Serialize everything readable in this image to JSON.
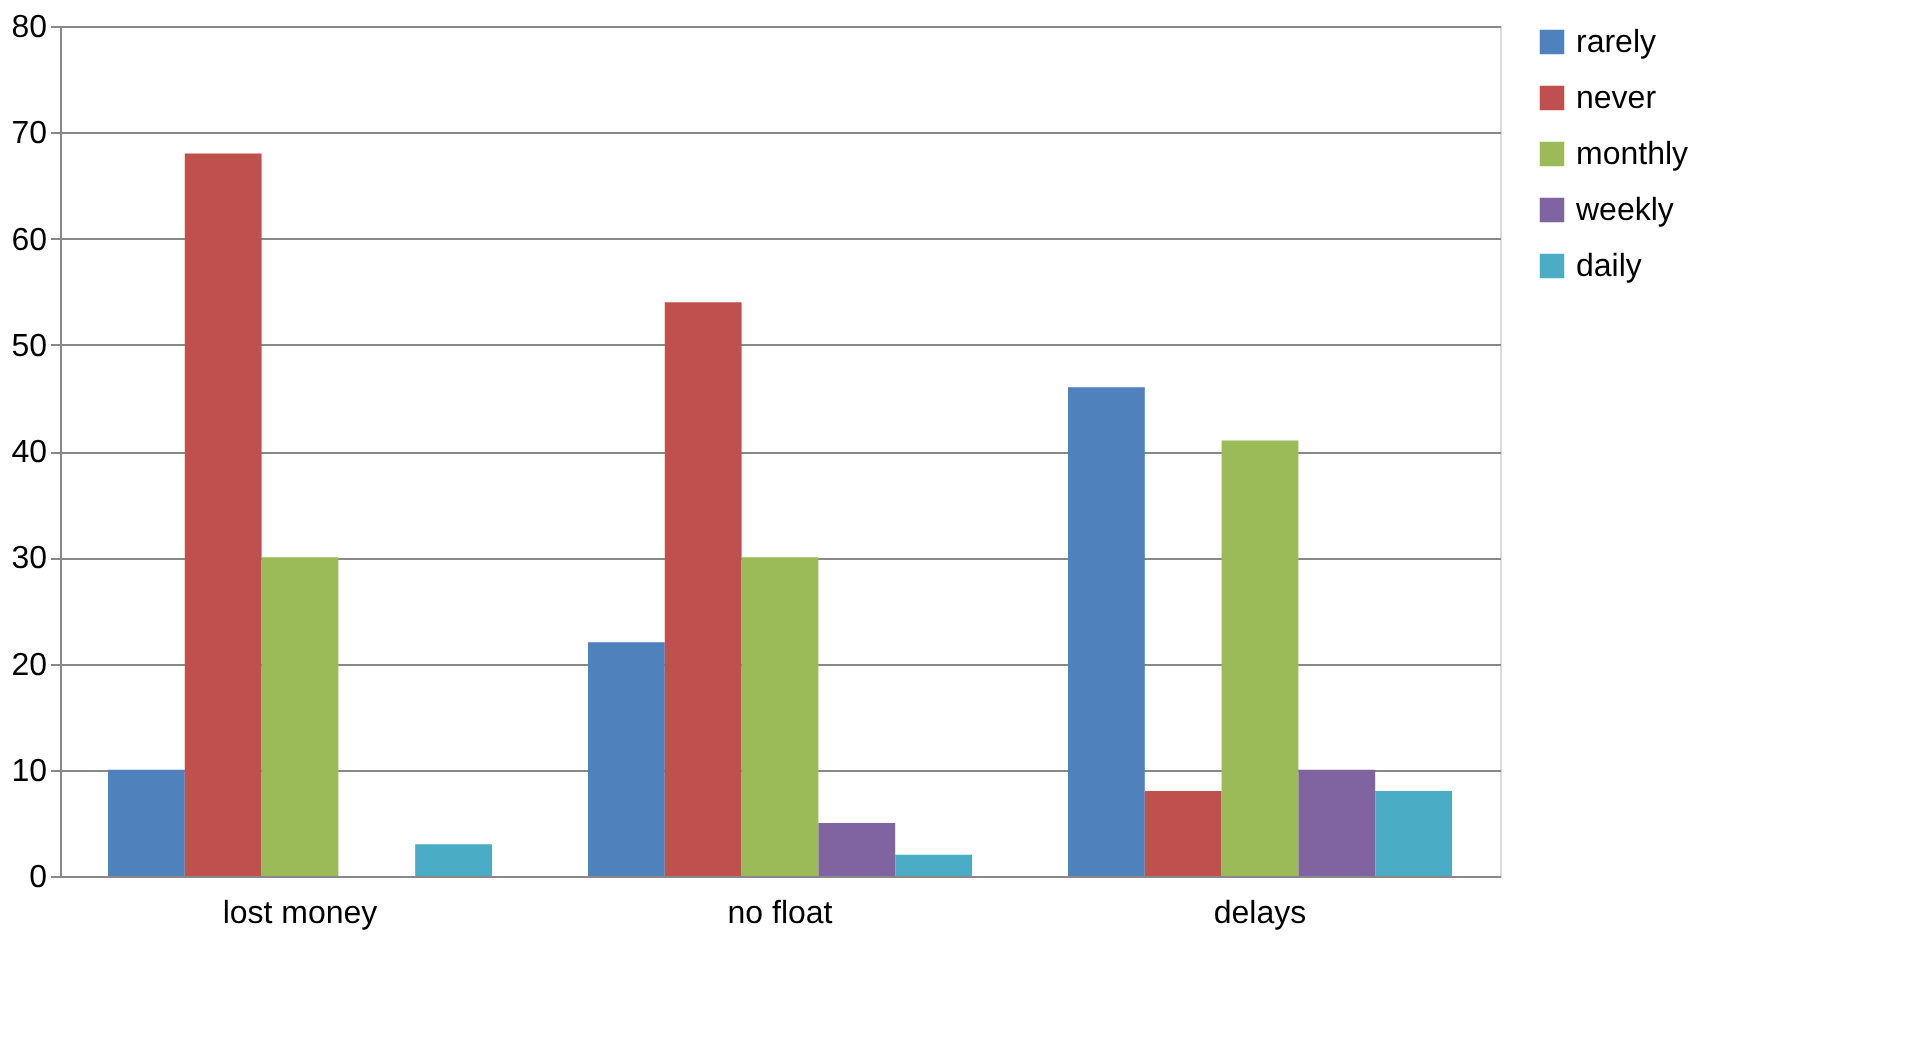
{
  "chart_data": {
    "type": "bar",
    "categories": [
      "lost money",
      "no float",
      "delays"
    ],
    "series": [
      {
        "name": "rarely",
        "color": "#4f81bd",
        "values": [
          10,
          22,
          46
        ]
      },
      {
        "name": "never",
        "color": "#c0504d",
        "values": [
          68,
          54,
          8
        ]
      },
      {
        "name": "monthly",
        "color": "#9bbb59",
        "values": [
          30,
          30,
          41
        ]
      },
      {
        "name": "weekly",
        "color": "#8064a2",
        "values": [
          0,
          5,
          10
        ]
      },
      {
        "name": "daily",
        "color": "#4bacc6",
        "values": [
          3,
          2,
          8
        ]
      }
    ],
    "ylim": [
      0,
      80
    ],
    "yticks": [
      0,
      10,
      20,
      30,
      40,
      50,
      60,
      70,
      80
    ],
    "grid": "y",
    "legend": "right"
  }
}
